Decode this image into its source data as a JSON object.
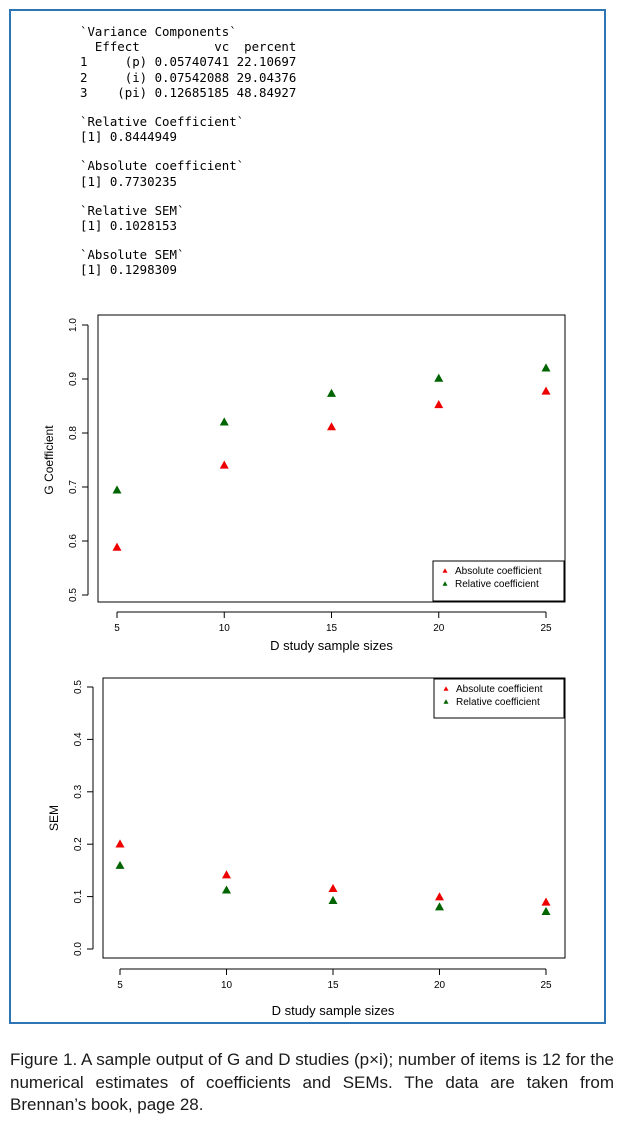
{
  "console": {
    "variance_title": "`Variance Components`",
    "header_row": "  Effect          vc  percent",
    "rows": [
      "1     (p) 0.05740741 22.10697",
      "2     (i) 0.07542088 29.04376",
      "3    (pi) 0.12685185 48.84927"
    ],
    "relative_coef_title": "`Relative Coefficient`",
    "relative_coef_value": "[1] 0.8444949",
    "absolute_coef_title": "`Absolute coefficient`",
    "absolute_coef_value": "[1] 0.7730235",
    "relative_sem_title": "`Relative SEM`",
    "relative_sem_value": "[1] 0.1028153",
    "absolute_sem_title": "`Absolute SEM`",
    "absolute_sem_value": "[1] 0.1298309"
  },
  "chart_data": [
    {
      "type": "scatter",
      "xlabel": "D study sample sizes",
      "ylabel": "G Coefficient",
      "x": [
        5,
        10,
        15,
        20,
        25
      ],
      "xticks": [
        "5",
        "10",
        "15",
        "20",
        "25"
      ],
      "yticks": [
        "0.5",
        "0.6",
        "0.7",
        "0.8",
        "0.9",
        "1.0"
      ],
      "ylim": [
        0.5,
        1.0
      ],
      "legend_position": "bottom-right",
      "series": [
        {
          "name": "Absolute coefficient",
          "color": "#ee0000",
          "values": [
            0.588,
            0.74,
            0.811,
            0.852,
            0.877
          ]
        },
        {
          "name": "Relative coefficient",
          "color": "#006400",
          "values": [
            0.694,
            0.82,
            0.873,
            0.901,
            0.92
          ]
        }
      ]
    },
    {
      "type": "scatter",
      "xlabel": "D study sample sizes",
      "ylabel": "SEM",
      "x": [
        5,
        10,
        15,
        20,
        25
      ],
      "xticks": [
        "5",
        "10",
        "15",
        "20",
        "25"
      ],
      "yticks": [
        "0.0",
        "0.1",
        "0.2",
        "0.3",
        "0.4",
        "0.5"
      ],
      "ylim": [
        0.0,
        0.5
      ],
      "legend_position": "top-right",
      "series": [
        {
          "name": "Absolute coefficient",
          "color": "#ee0000",
          "values": [
            0.2,
            0.141,
            0.115,
            0.099,
            0.089
          ]
        },
        {
          "name": "Relative coefficient",
          "color": "#006400",
          "values": [
            0.159,
            0.112,
            0.092,
            0.08,
            0.071
          ]
        }
      ]
    }
  ],
  "caption": "Figure 1. A sample output of G and D studies (p×i); number of items is 12 for the numerical estimates of coefficients and SEMs. The data are taken from Brennan’s book, page 28."
}
